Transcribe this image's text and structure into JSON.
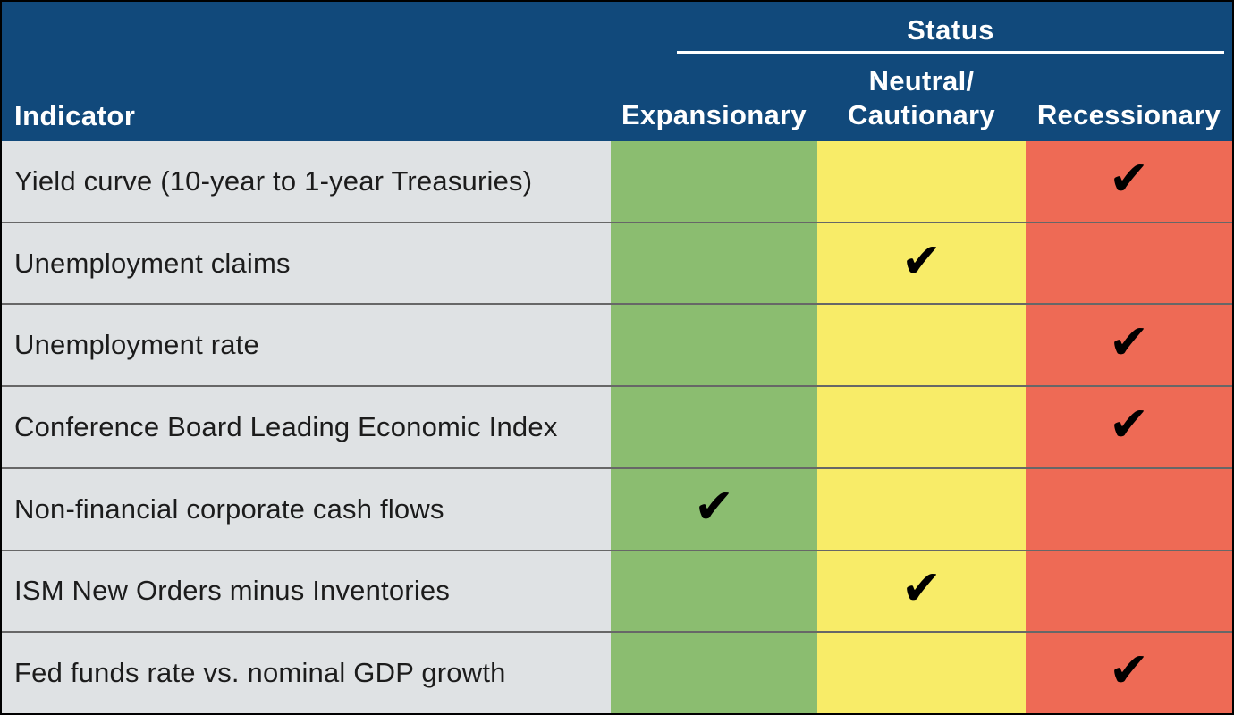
{
  "header": {
    "indicator_label": "Indicator",
    "status_label": "Status",
    "col_expansionary": "Expansionary",
    "col_neutral": "Neutral/\nCautionary",
    "col_recessionary": "Recessionary"
  },
  "checkmark_glyph": "✔",
  "rows": [
    {
      "label": "Yield curve (10-year to 1-year Treasuries)",
      "status": "Recessionary",
      "marks": [
        "",
        "",
        "✔"
      ]
    },
    {
      "label": "Unemployment claims",
      "status": "Neutral/Cautionary",
      "marks": [
        "",
        "✔",
        ""
      ]
    },
    {
      "label": "Unemployment rate",
      "status": "Recessionary",
      "marks": [
        "",
        "",
        "✔"
      ]
    },
    {
      "label": "Conference Board Leading Economic Index",
      "status": "Recessionary",
      "marks": [
        "",
        "",
        "✔"
      ]
    },
    {
      "label": "Non-financial corporate cash flows",
      "status": "Expansionary",
      "marks": [
        "✔",
        "",
        ""
      ]
    },
    {
      "label": "ISM New Orders minus Inventories",
      "status": "Neutral/Cautionary",
      "marks": [
        "",
        "✔",
        ""
      ]
    },
    {
      "label": "Fed funds rate vs. nominal GDP growth",
      "status": "Recessionary",
      "marks": [
        "",
        "",
        "✔"
      ]
    }
  ],
  "colors": {
    "header_bg": "#11497B",
    "header_text": "#FFFFFF",
    "indicator_col_bg": "#DFE2E4",
    "expansionary_bg": "#8BBD70",
    "neutral_bg": "#F8EC68",
    "recessionary_bg": "#EE6A55",
    "row_text": "#1C1C1C",
    "checkmark": "#000000"
  },
  "chart_data": {
    "type": "table",
    "title": "",
    "column_group": {
      "label": "Status",
      "spans": [
        "Expansionary",
        "Neutral/Cautionary",
        "Recessionary"
      ]
    },
    "columns": [
      "Indicator",
      "Expansionary",
      "Neutral/Cautionary",
      "Recessionary"
    ],
    "rows": [
      [
        "Yield curve (10-year to 1-year Treasuries)",
        "",
        "",
        "✔"
      ],
      [
        "Unemployment claims",
        "",
        "✔",
        ""
      ],
      [
        "Unemployment rate",
        "",
        "",
        "✔"
      ],
      [
        "Conference Board Leading Economic Index",
        "",
        "",
        "✔"
      ],
      [
        "Non-financial corporate cash flows",
        "✔",
        "",
        ""
      ],
      [
        "ISM New Orders minus Inventories",
        "",
        "✔",
        ""
      ],
      [
        "Fed funds rate vs. nominal GDP growth",
        "",
        "",
        "✔"
      ]
    ]
  }
}
